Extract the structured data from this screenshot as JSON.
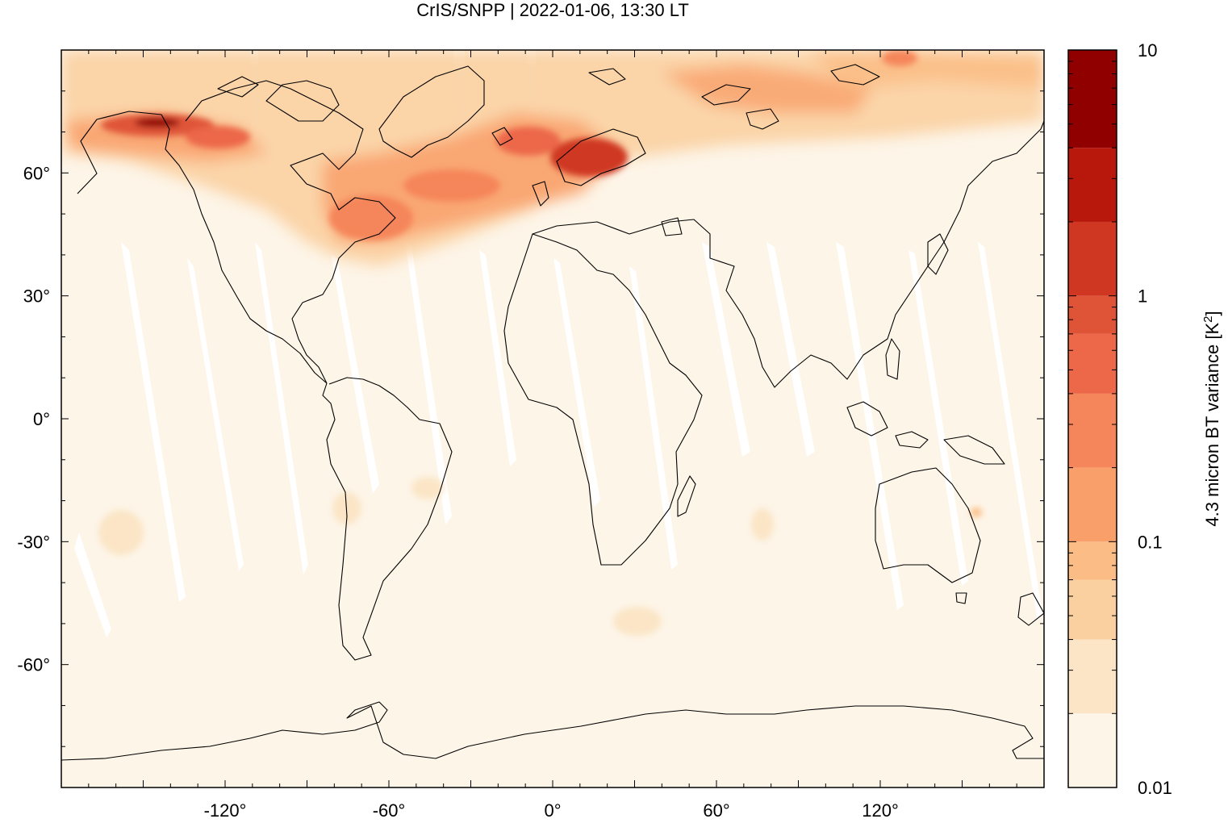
{
  "title": "CrIS/SNPP | 2022-01-06, 13:30 LT",
  "colorbar": {
    "label": "4.3 micron BT variance [K",
    "label_sup": "2",
    "label_end": "]",
    "scale": "log",
    "range": [
      0.01,
      10
    ],
    "ticks": [
      "10",
      "1",
      "0.1",
      "0.01"
    ],
    "tick_values": [
      10,
      1,
      0.1,
      0.01
    ],
    "levels": [
      0.01,
      0.02,
      0.04,
      0.07,
      0.1,
      0.2,
      0.4,
      0.7,
      1,
      2,
      4,
      10
    ],
    "colors": [
      "#fdf5e8",
      "#fbe5c6",
      "#fbd0a1",
      "#fbbd85",
      "#f9a06a",
      "#f5855a",
      "#ec6849",
      "#df5437",
      "#cf3722",
      "#b8170b",
      "#900000"
    ]
  },
  "map": {
    "projection": "equirectangular",
    "lon_range": [
      -180,
      180
    ],
    "lat_range": [
      -90,
      90
    ],
    "x_ticks": [
      "-120°",
      "-60°",
      "0°",
      "60°",
      "120°"
    ],
    "x_tick_values": [
      -120,
      -60,
      0,
      60,
      120
    ],
    "y_ticks": [
      "60°",
      "30°",
      "0°",
      "-30°",
      "-60°"
    ],
    "y_tick_values": [
      60,
      30,
      0,
      -30,
      -60
    ],
    "background_color": "#fdf5e8",
    "gap_color": "#ffffff",
    "coastline_color": "#000000"
  }
}
